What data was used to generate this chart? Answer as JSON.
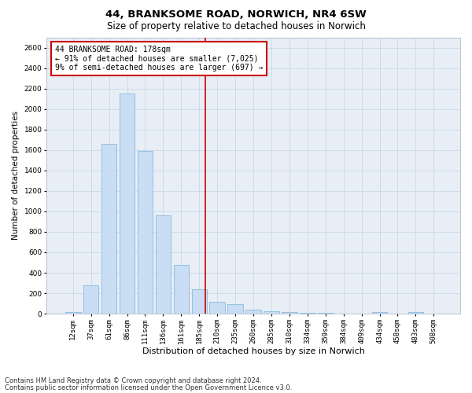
{
  "title1": "44, BRANKSOME ROAD, NORWICH, NR4 6SW",
  "title2": "Size of property relative to detached houses in Norwich",
  "xlabel": "Distribution of detached houses by size in Norwich",
  "ylabel": "Number of detached properties",
  "footnote1": "Contains HM Land Registry data © Crown copyright and database right 2024.",
  "footnote2": "Contains public sector information licensed under the Open Government Licence v3.0.",
  "annotation_title": "44 BRANKSOME ROAD: 178sqm",
  "annotation_line1": "← 91% of detached houses are smaller (7,025)",
  "annotation_line2": "9% of semi-detached houses are larger (697) →",
  "bar_labels": [
    "12sqm",
    "37sqm",
    "61sqm",
    "86sqm",
    "111sqm",
    "136sqm",
    "161sqm",
    "185sqm",
    "210sqm",
    "235sqm",
    "260sqm",
    "285sqm",
    "310sqm",
    "334sqm",
    "359sqm",
    "384sqm",
    "409sqm",
    "434sqm",
    "458sqm",
    "483sqm",
    "508sqm"
  ],
  "bar_values": [
    18,
    280,
    1660,
    2150,
    1590,
    960,
    480,
    240,
    120,
    90,
    42,
    22,
    18,
    9,
    9,
    4,
    2,
    14,
    2,
    14,
    2
  ],
  "bar_color": "#c9ddf5",
  "bar_edgecolor": "#7ab0d8",
  "vline_color": "#cc0000",
  "vline_x": 7.35,
  "ylim": [
    0,
    2700
  ],
  "yticks": [
    0,
    200,
    400,
    600,
    800,
    1000,
    1200,
    1400,
    1600,
    1800,
    2000,
    2200,
    2400,
    2600
  ],
  "grid_color": "#c8d8ea",
  "bg_color": "#e8eef6",
  "annotation_box_edgecolor": "#cc0000",
  "title1_fontsize": 9.5,
  "title2_fontsize": 8.5,
  "xlabel_fontsize": 8,
  "ylabel_fontsize": 7.5,
  "tick_fontsize": 6.5,
  "annotation_fontsize": 7,
  "footnote_fontsize": 6
}
